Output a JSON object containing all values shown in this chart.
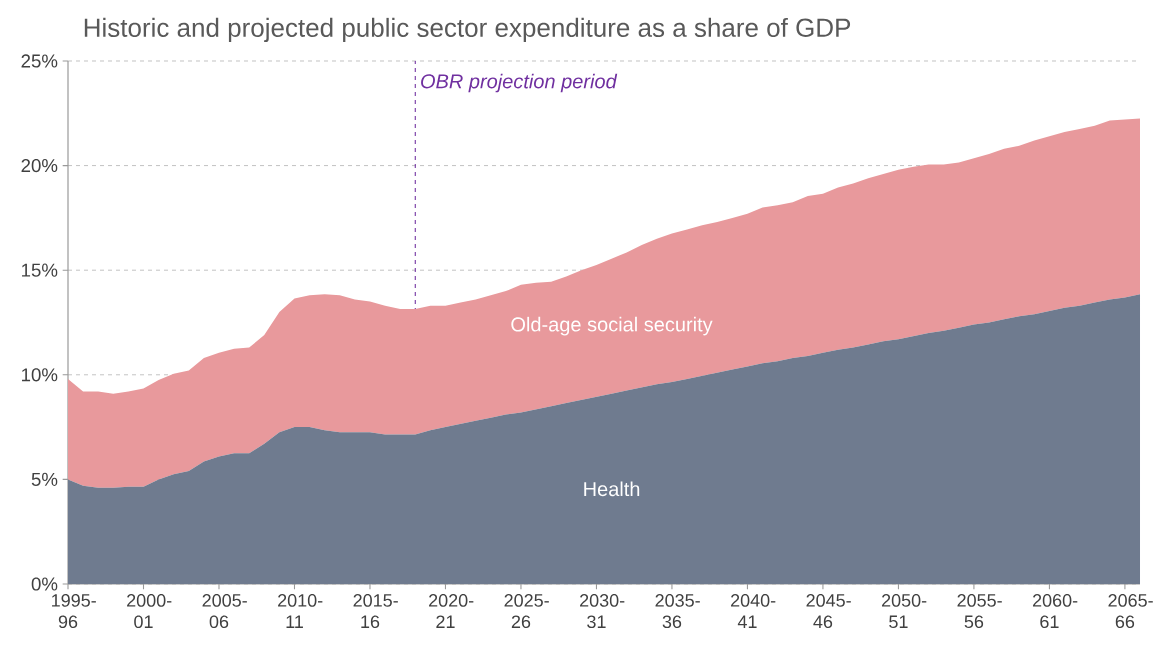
{
  "chart_data": {
    "type": "area",
    "title": "Historic and projected public sector expenditure as a share of GDP",
    "stacked": true,
    "grid": "y",
    "categories": [
      "1995-96",
      null,
      null,
      null,
      null,
      "2000-01",
      null,
      null,
      null,
      null,
      "2005-06",
      null,
      null,
      null,
      null,
      "2010-11",
      null,
      null,
      null,
      null,
      "2015-16",
      null,
      null,
      null,
      null,
      "2020-21",
      null,
      null,
      null,
      null,
      "2025-26",
      null,
      null,
      null,
      null,
      "2030-31",
      null,
      null,
      null,
      null,
      "2035-36",
      null,
      null,
      null,
      null,
      "2040-41",
      null,
      null,
      null,
      null,
      "2045-46",
      null,
      null,
      null,
      null,
      "2050-51",
      null,
      null,
      null,
      null,
      "2055-56",
      null,
      null,
      null,
      null,
      "2060-61",
      null,
      null,
      null,
      null,
      "2065-66",
      null
    ],
    "series": [
      {
        "name": "Health",
        "color": "#6f7b8f",
        "values": [
          5.0,
          4.7,
          4.6,
          4.6,
          4.65,
          4.65,
          5.0,
          5.25,
          5.4,
          5.85,
          6.1,
          6.25,
          6.25,
          6.7,
          7.25,
          7.5,
          7.5,
          7.35,
          7.25,
          7.25,
          7.25,
          7.15,
          7.15,
          7.15,
          7.35,
          7.5,
          7.65,
          7.8,
          7.95,
          8.1,
          8.2,
          8.35,
          8.5,
          8.65,
          8.8,
          8.95,
          9.1,
          9.25,
          9.4,
          9.55,
          9.65,
          9.8,
          9.95,
          10.1,
          10.25,
          10.4,
          10.55,
          10.65,
          10.8,
          10.9,
          11.05,
          11.2,
          11.3,
          11.45,
          11.6,
          11.7,
          11.85,
          12.0,
          12.1,
          12.25,
          12.4,
          12.5,
          12.65,
          12.8,
          12.9,
          13.05,
          13.2,
          13.3,
          13.45,
          13.6,
          13.7,
          13.85
        ]
      },
      {
        "name": "Old-age social security",
        "color": "#e8999c",
        "values": [
          4.8,
          4.5,
          4.6,
          4.5,
          4.55,
          4.7,
          4.75,
          4.8,
          4.8,
          4.95,
          4.95,
          5.0,
          5.05,
          5.2,
          5.75,
          6.15,
          6.3,
          6.5,
          6.55,
          6.35,
          6.25,
          6.15,
          6.0,
          6.0,
          5.95,
          5.8,
          5.8,
          5.8,
          5.85,
          5.9,
          6.1,
          6.05,
          5.95,
          6.05,
          6.2,
          6.3,
          6.45,
          6.6,
          6.8,
          6.95,
          7.1,
          7.15,
          7.2,
          7.2,
          7.25,
          7.3,
          7.45,
          7.45,
          7.45,
          7.65,
          7.6,
          7.75,
          7.85,
          7.95,
          8.0,
          8.1,
          8.1,
          8.05,
          7.95,
          7.9,
          7.95,
          8.05,
          8.15,
          8.15,
          8.3,
          8.35,
          8.4,
          8.45,
          8.45,
          8.55,
          8.5,
          8.4
        ]
      }
    ],
    "ylim": [
      0,
      25
    ],
    "yticks": [
      {
        "value": 0,
        "label": "0%"
      },
      {
        "value": 5,
        "label": "5%"
      },
      {
        "value": 10,
        "label": "10%"
      },
      {
        "value": 15,
        "label": "15%"
      },
      {
        "value": 20,
        "label": "20%"
      },
      {
        "value": 25,
        "label": "25%"
      }
    ],
    "annotations": [
      "OBR projection period"
    ]
  }
}
